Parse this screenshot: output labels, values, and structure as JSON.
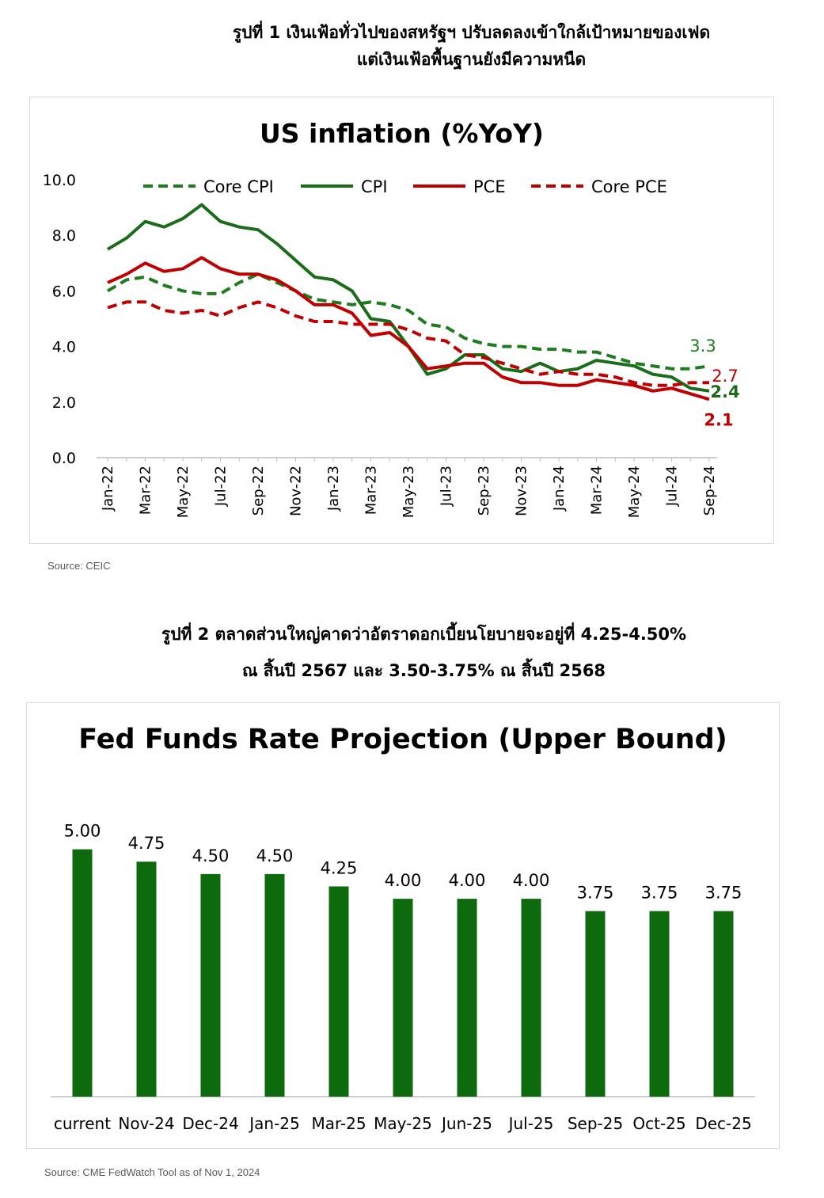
{
  "figure1": {
    "caption_line1": "รูปที่ 1 เงินเฟ้อทั่วไปของสหรัฐฯ ปรับลดลงเข้าใกล้เป้าหมายของเฟด",
    "caption_line2": "แต่เงินเฟ้อพื้นฐานยังมีความหนืด",
    "source": "Source: CEIC"
  },
  "figure2": {
    "caption_line1": "รูปที่ 2 ตลาดส่วนใหญ่คาดว่าอัตราดอกเบี้ยนโยบายจะอยู่ที่ 4.25-4.50%",
    "caption_line2": "ณ สิ้นปี 2567 และ 3.50-3.75% ณ สิ้นปี 2568",
    "source": "Source: CME FedWatch Tool as of Nov 1, 2024"
  },
  "chart_data": [
    {
      "type": "line",
      "title": "US inflation (%YoY)",
      "x": [
        "Jan-22",
        "Feb-22",
        "Mar-22",
        "Apr-22",
        "May-22",
        "Jun-22",
        "Jul-22",
        "Aug-22",
        "Sep-22",
        "Oct-22",
        "Nov-22",
        "Dec-22",
        "Jan-23",
        "Feb-23",
        "Mar-23",
        "Apr-23",
        "May-23",
        "Jun-23",
        "Jul-23",
        "Aug-23",
        "Sep-23",
        "Oct-23",
        "Nov-23",
        "Dec-23",
        "Jan-24",
        "Feb-24",
        "Mar-24",
        "Apr-24",
        "May-24",
        "Jun-24",
        "Jul-24",
        "Aug-24",
        "Sep-24"
      ],
      "x_tick_labels": [
        "Jan-22",
        "Mar-22",
        "May-22",
        "Jul-22",
        "Sep-22",
        "Nov-22",
        "Jan-23",
        "Mar-23",
        "May-23",
        "Jul-23",
        "Sep-23",
        "Nov-23",
        "Jan-24",
        "Mar-24",
        "May-24",
        "Jul-24",
        "Sep-24"
      ],
      "y_tick_labels": [
        "0.0",
        "2.0",
        "4.0",
        "6.0",
        "8.0",
        "10.0"
      ],
      "ylim": [
        0,
        10
      ],
      "legend_position": "top",
      "series": [
        {
          "name": "Core CPI",
          "color": "#1e7b1e",
          "dash": true,
          "values": [
            6.0,
            6.4,
            6.5,
            6.2,
            6.0,
            5.9,
            5.9,
            6.3,
            6.6,
            6.3,
            6.0,
            5.7,
            5.6,
            5.5,
            5.6,
            5.5,
            5.3,
            4.8,
            4.7,
            4.3,
            4.1,
            4.0,
            4.0,
            3.9,
            3.9,
            3.8,
            3.8,
            3.6,
            3.4,
            3.3,
            3.2,
            3.2,
            3.3
          ]
        },
        {
          "name": "CPI",
          "color": "#1a6b1a",
          "dash": false,
          "values": [
            7.5,
            7.9,
            8.5,
            8.3,
            8.6,
            9.1,
            8.5,
            8.3,
            8.2,
            7.7,
            7.1,
            6.5,
            6.4,
            6.0,
            5.0,
            4.9,
            4.0,
            3.0,
            3.2,
            3.7,
            3.7,
            3.2,
            3.1,
            3.4,
            3.1,
            3.2,
            3.5,
            3.4,
            3.3,
            3.0,
            2.9,
            2.5,
            2.4
          ]
        },
        {
          "name": "PCE",
          "color": "#c00000",
          "dash": false,
          "values": [
            6.3,
            6.6,
            7.0,
            6.7,
            6.8,
            7.2,
            6.8,
            6.6,
            6.6,
            6.4,
            6.0,
            5.5,
            5.5,
            5.2,
            4.4,
            4.5,
            4.0,
            3.2,
            3.3,
            3.4,
            3.4,
            2.9,
            2.7,
            2.7,
            2.6,
            2.6,
            2.8,
            2.7,
            2.6,
            2.4,
            2.5,
            2.3,
            2.1
          ]
        },
        {
          "name": "Core PCE",
          "color": "#c00000",
          "dash": true,
          "values": [
            5.4,
            5.6,
            5.6,
            5.3,
            5.2,
            5.3,
            5.1,
            5.4,
            5.6,
            5.4,
            5.1,
            4.9,
            4.9,
            4.8,
            4.8,
            4.8,
            4.6,
            4.3,
            4.2,
            3.7,
            3.6,
            3.4,
            3.2,
            3.0,
            3.1,
            3.0,
            3.0,
            2.9,
            2.7,
            2.6,
            2.6,
            2.7,
            2.7
          ]
        }
      ],
      "end_labels": [
        {
          "series": "Core CPI",
          "text": "3.3",
          "color": "#1e7b1e",
          "bold": false
        },
        {
          "series": "Core PCE",
          "text": "2.7",
          "color": "#c00000",
          "bold": false
        },
        {
          "series": "CPI",
          "text": "2.4",
          "color": "#1a6b1a",
          "bold": true
        },
        {
          "series": "PCE",
          "text": "2.1",
          "color": "#c00000",
          "bold": true
        }
      ]
    },
    {
      "type": "bar",
      "title": "Fed Funds Rate Projection (Upper Bound)",
      "categories": [
        "current",
        "Nov-24",
        "Dec-24",
        "Jan-25",
        "Mar-25",
        "May-25",
        "Jun-25",
        "Jul-25",
        "Sep-25",
        "Oct-25",
        "Dec-25"
      ],
      "values": [
        5.0,
        4.75,
        4.5,
        4.5,
        4.25,
        4.0,
        4.0,
        4.0,
        3.75,
        3.75,
        3.75
      ],
      "value_labels": [
        "5.00",
        "4.75",
        "4.50",
        "4.50",
        "4.25",
        "4.00",
        "4.00",
        "4.00",
        "3.75",
        "3.75",
        "3.75"
      ],
      "color": "#0d6a0d",
      "ylim": [
        0,
        5.25
      ]
    }
  ]
}
